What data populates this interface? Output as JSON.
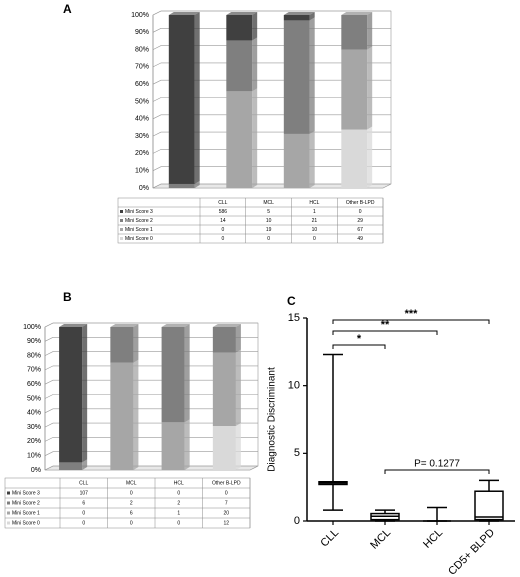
{
  "chart_data": [
    {
      "type": "stacked_percent",
      "label": "A",
      "categories": [
        "CLL",
        "MCL",
        "HCL",
        "Other B-LPD"
      ],
      "series": [
        {
          "name": "Mini Score 3",
          "color": "#404040",
          "values": [
            586,
            5,
            1,
            0
          ]
        },
        {
          "name": "Mini Score 2",
          "color": "#7f7f7f",
          "values": [
            14,
            10,
            21,
            29
          ]
        },
        {
          "name": "Mini Score 1",
          "color": "#a6a6a6",
          "values": [
            0,
            19,
            10,
            67
          ]
        },
        {
          "name": "Mini Score 0",
          "color": "#d9d9d9",
          "values": [
            0,
            0,
            0,
            49
          ]
        }
      ],
      "ylim": [
        0,
        100
      ],
      "yticks": [
        {
          "value": 0,
          "label": "0%"
        },
        {
          "value": 10,
          "label": "10%"
        },
        {
          "value": 20,
          "label": "20%"
        },
        {
          "value": 30,
          "label": "30%"
        },
        {
          "value": 40,
          "label": "40%"
        },
        {
          "value": 50,
          "label": "50%"
        },
        {
          "value": 60,
          "label": "60%"
        },
        {
          "value": 70,
          "label": "70%"
        },
        {
          "value": 80,
          "label": "80%"
        },
        {
          "value": 90,
          "label": "90%"
        },
        {
          "value": 100,
          "label": "100%"
        }
      ],
      "grid": true
    },
    {
      "type": "stacked_percent",
      "label": "B",
      "categories": [
        "CLL",
        "MCL",
        "HCL",
        "Other B-LPD"
      ],
      "series": [
        {
          "name": "Mini Score 3",
          "color": "#404040",
          "values": [
            107,
            0,
            0,
            0
          ]
        },
        {
          "name": "Mini Score 2",
          "color": "#7f7f7f",
          "values": [
            6,
            2,
            2,
            7
          ]
        },
        {
          "name": "Mini Score 1",
          "color": "#a6a6a6",
          "values": [
            0,
            6,
            1,
            20
          ]
        },
        {
          "name": "Mini Score 0",
          "color": "#d9d9d9",
          "values": [
            0,
            0,
            0,
            12
          ]
        }
      ],
      "ylim": [
        0,
        100
      ],
      "yticks": [
        {
          "value": 0,
          "label": "0%"
        },
        {
          "value": 10,
          "label": "10%"
        },
        {
          "value": 20,
          "label": "20%"
        },
        {
          "value": 30,
          "label": "30%"
        },
        {
          "value": 40,
          "label": "40%"
        },
        {
          "value": 50,
          "label": "50%"
        },
        {
          "value": 60,
          "label": "60%"
        },
        {
          "value": 70,
          "label": "70%"
        },
        {
          "value": 80,
          "label": "80%"
        },
        {
          "value": 90,
          "label": "90%"
        },
        {
          "value": 100,
          "label": "100%"
        }
      ],
      "grid": true
    },
    {
      "type": "box",
      "label": "C",
      "y_label": "Diagnostic Discriminant",
      "categories": [
        "CLL",
        "MCL",
        "HCL",
        "CD5+ BLPD"
      ],
      "boxes": [
        {
          "min": 0.8,
          "q1": 2.7,
          "median": 2.8,
          "q3": 2.9,
          "max": 12.3
        },
        {
          "min": 0,
          "q1": 0.1,
          "median": 0.35,
          "q3": 0.55,
          "max": 0.8
        },
        {
          "min": 0,
          "q1": 0,
          "median": 0,
          "q3": 0,
          "max": 1.0
        },
        {
          "min": 0,
          "q1": 0.1,
          "median": 0.3,
          "q3": 2.2,
          "max": 3.0
        }
      ],
      "ylim": [
        0,
        15
      ],
      "yticks": [
        0,
        5,
        10,
        15
      ],
      "annotations": [
        "*",
        "**",
        "***",
        "P= 0.1277"
      ]
    }
  ]
}
